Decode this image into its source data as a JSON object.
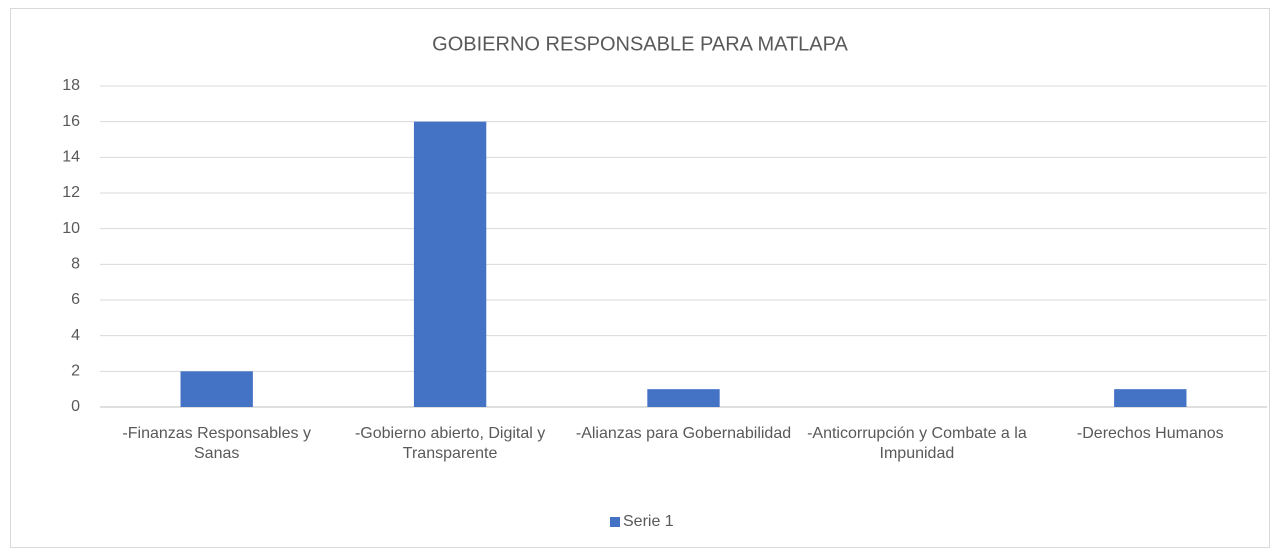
{
  "chart_data": {
    "type": "bar",
    "title": "GOBIERNO RESPONSABLE PARA MATLAPA",
    "categories": [
      "-Finanzas Responsables y Sanas",
      "-Gobierno abierto, Digital y Transparente",
      "-Alianzas para Gobernabilidad",
      "-Anticorrupción y Combate a la Impunidad",
      "-Derechos Humanos"
    ],
    "series": [
      {
        "name": "Serie 1",
        "color": "#4472c4",
        "values": [
          2,
          16,
          1,
          0,
          1
        ]
      }
    ],
    "ylim": [
      0,
      18
    ],
    "yticks": [
      0,
      2,
      4,
      6,
      8,
      10,
      12,
      14,
      16,
      18
    ],
    "grid": true,
    "legend": "bottom"
  }
}
